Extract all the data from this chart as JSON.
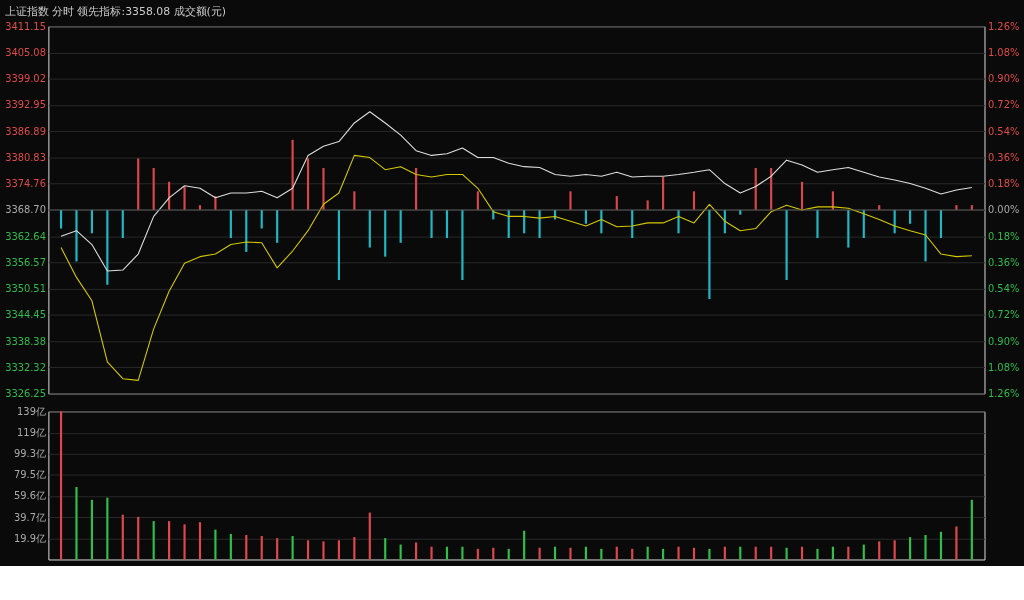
{
  "chart_data": [
    {
      "type": "line",
      "title": "上证指数  分时  领先指标:3358.08  成交额(元)",
      "categories": [
        null,
        null,
        null,
        null,
        null,
        null,
        null,
        null,
        null,
        null,
        null,
        null,
        null,
        null,
        null,
        null,
        null,
        null,
        null,
        null,
        null,
        null,
        null,
        null,
        null,
        null,
        null,
        null,
        null,
        null,
        null,
        null,
        null,
        null,
        null,
        null,
        null,
        null,
        null,
        null,
        null,
        null,
        null,
        null,
        null,
        null,
        null,
        null,
        null,
        null,
        null,
        null,
        null,
        null,
        null,
        null,
        null,
        null,
        null,
        null
      ],
      "ylim": [
        3326.25,
        3411.15
      ],
      "yticks": [
        {
          "value": 3326.25,
          "label": "3326.25"
        },
        {
          "value": 3332.32,
          "label": "3332.32"
        },
        {
          "value": 3338.38,
          "label": "3338.38"
        },
        {
          "value": 3344.45,
          "label": "3344.45"
        },
        {
          "value": 3350.51,
          "label": "3350.51"
        },
        {
          "value": 3356.57,
          "label": "3356.57"
        },
        {
          "value": 3362.64,
          "label": "3362.64"
        },
        {
          "value": 3368.7,
          "label": "3368.70"
        },
        {
          "value": 3374.76,
          "label": "3374.76"
        },
        {
          "value": 3380.83,
          "label": "3380.83"
        },
        {
          "value": 3386.89,
          "label": "3386.89"
        },
        {
          "value": 3392.95,
          "label": "3392.95"
        },
        {
          "value": 3399.02,
          "label": "3399.02"
        },
        {
          "value": 3405.08,
          "label": "3405.08"
        },
        {
          "value": 3411.15,
          "label": "3411.15"
        }
      ],
      "y2lim": [
        -1.26,
        1.26
      ],
      "y2ticks": [
        {
          "value": -1.26,
          "label": "1.26%"
        },
        {
          "value": -1.08,
          "label": "1.08%"
        },
        {
          "value": -0.9,
          "label": "0.90%"
        },
        {
          "value": -0.72,
          "label": "0.72%"
        },
        {
          "value": -0.54,
          "label": "0.54%"
        },
        {
          "value": -0.36,
          "label": "0.36%"
        },
        {
          "value": -0.18,
          "label": "0.18%"
        },
        {
          "value": 0,
          "label": "0.00%"
        },
        {
          "value": 0.18,
          "label": "0.18%"
        },
        {
          "value": 0.36,
          "label": "0.36%"
        },
        {
          "value": 0.54,
          "label": "0.54%"
        },
        {
          "value": 0.72,
          "label": "0.72%"
        },
        {
          "value": 0.9,
          "label": "0.90%"
        },
        {
          "value": 1.08,
          "label": "1.08%"
        },
        {
          "value": 1.26,
          "label": "1.26%"
        }
      ],
      "grid": "y",
      "ref_lines": [
        {
          "axis": "y2",
          "value": 0,
          "color": "#555555"
        }
      ],
      "series": [
        {
          "type": "bar",
          "base": [
            3368.7,
            3368.7,
            3368.7,
            3368.7,
            3368.7,
            3368.7,
            3368.7,
            3368.7,
            3368.7,
            3368.7,
            3368.7,
            3368.7,
            3368.7,
            3368.7,
            3368.7,
            3368.7,
            3368.7,
            3368.7,
            3368.7,
            3368.7,
            3368.7,
            3368.7,
            3368.7,
            3368.7,
            3368.7,
            3368.7,
            3368.7,
            3368.7,
            3368.7,
            3368.7,
            3368.7,
            3368.7,
            3368.7,
            3368.7,
            3368.7,
            3368.7,
            3368.7,
            3368.7,
            3368.7,
            3368.7,
            3368.7,
            3368.7,
            3368.7,
            3368.7,
            3368.7,
            3368.7,
            3368.7,
            3368.7,
            3368.7,
            3368.7,
            3368.7,
            3368.7,
            3368.7,
            3368.7,
            3368.7,
            3368.7,
            3368.7,
            3368.7,
            3368.7,
            3368.7
          ],
          "values": [
            -4.3,
            -11.9,
            -5.4,
            -17.3,
            -6.5,
            11.9,
            9.7,
            6.5,
            5.4,
            1.1,
            3.2,
            -6.5,
            -9.7,
            -4.3,
            -7.6,
            16.2,
            11.9,
            9.7,
            -16.2,
            4.3,
            -8.7,
            -10.8,
            -7.6,
            9.7,
            -6.5,
            -6.5,
            -16.2,
            4.3,
            -2.2,
            -6.5,
            -5.4,
            -6.5,
            -2.2,
            4.3,
            -3.2,
            -5.4,
            3.2,
            -6.5,
            2.2,
            7.6,
            -5.4,
            4.3,
            -20.6,
            -5.4,
            -1.1,
            9.7,
            9.7,
            -16.2,
            6.5,
            -6.5,
            4.3,
            -8.7,
            -6.5,
            1.1,
            -5.4,
            -3.2,
            -11.9,
            -6.5,
            1.1,
            1.1
          ],
          "colors": [
            "#20b8c4",
            "#20b8c4",
            "#20b8c4",
            "#20b8c4",
            "#20b8c4",
            "#d9474a",
            "#d9474a",
            "#d9474a",
            "#d9474a",
            "#d9474a",
            "#d9474a",
            "#20b8c4",
            "#20b8c4",
            "#20b8c4",
            "#20b8c4",
            "#d9474a",
            "#d9474a",
            "#d9474a",
            "#20b8c4",
            "#d9474a",
            "#20b8c4",
            "#20b8c4",
            "#20b8c4",
            "#d9474a",
            "#20b8c4",
            "#20b8c4",
            "#20b8c4",
            "#d9474a",
            "#20b8c4",
            "#20b8c4",
            "#20b8c4",
            "#20b8c4",
            "#20b8c4",
            "#d9474a",
            "#20b8c4",
            "#20b8c4",
            "#d9474a",
            "#20b8c4",
            "#d9474a",
            "#d9474a",
            "#20b8c4",
            "#d9474a",
            "#20b8c4",
            "#20b8c4",
            "#20b8c4",
            "#d9474a",
            "#d9474a",
            "#20b8c4",
            "#d9474a",
            "#20b8c4",
            "#d9474a",
            "#20b8c4",
            "#20b8c4",
            "#d9474a",
            "#20b8c4",
            "#20b8c4",
            "#20b8c4",
            "#20b8c4",
            "#d9474a",
            "#d9474a"
          ]
        },
        {
          "type": "line",
          "color": "#dddddd",
          "values": [
            3362.6,
            3363.9,
            3360.7,
            3354.6,
            3354.8,
            3358.5,
            3367.2,
            3371.5,
            3374.3,
            3373.7,
            3371.5,
            3372.6,
            3372.6,
            3373.0,
            3371.5,
            3373.7,
            3381.3,
            3383.4,
            3384.5,
            3388.8,
            3391.4,
            3388.8,
            3386.0,
            3382.4,
            3381.3,
            3381.7,
            3383.0,
            3380.8,
            3380.8,
            3379.5,
            3378.7,
            3378.5,
            3376.9,
            3376.5,
            3376.9,
            3376.5,
            3377.4,
            3376.3,
            3376.5,
            3376.5,
            3376.9,
            3377.4,
            3378.0,
            3374.8,
            3372.6,
            3374.1,
            3376.5,
            3380.2,
            3379.1,
            3377.4,
            3378.0,
            3378.5,
            3377.4,
            3376.3,
            3375.6,
            3374.8,
            3373.7,
            3372.4,
            3373.3,
            3373.9
          ]
        },
        {
          "type": "line",
          "color": "#d4c800",
          "values": [
            3360.0,
            3353.1,
            3347.7,
            3333.6,
            3329.7,
            3329.3,
            3341.2,
            3349.9,
            3356.4,
            3357.9,
            3358.5,
            3360.7,
            3361.3,
            3361.1,
            3355.3,
            3359.2,
            3363.9,
            3370.0,
            3372.6,
            3381.3,
            3380.8,
            3378.0,
            3378.7,
            3376.9,
            3376.3,
            3376.9,
            3376.9,
            3373.7,
            3368.3,
            3367.2,
            3367.2,
            3366.8,
            3367.2,
            3366.1,
            3365.0,
            3366.5,
            3364.8,
            3365.0,
            3365.7,
            3365.7,
            3367.2,
            3365.7,
            3370.0,
            3366.1,
            3363.9,
            3364.4,
            3368.3,
            3369.8,
            3368.7,
            3369.4,
            3369.4,
            3369.1,
            3367.8,
            3366.5,
            3365.0,
            3363.9,
            3362.9,
            3358.5,
            3357.9,
            3358.1
          ]
        }
      ]
    },
    {
      "type": "bar",
      "categories": [
        null,
        null,
        null,
        null,
        null,
        null,
        null,
        null,
        null,
        null,
        null,
        null,
        null,
        null,
        null,
        null,
        null,
        null,
        null,
        null,
        null,
        null,
        null,
        null,
        null,
        null,
        null,
        null,
        null,
        null,
        null,
        null,
        null,
        null,
        null,
        null,
        null,
        null,
        null,
        null,
        null,
        null,
        null,
        null,
        null,
        null,
        null,
        null,
        null,
        null,
        null,
        null,
        null,
        null,
        null,
        null,
        null,
        null,
        null,
        null
      ],
      "ylim": [
        0,
        139
      ],
      "yticks": [
        {
          "value": 19.9,
          "label": "19.9亿"
        },
        {
          "value": 39.7,
          "label": "39.7亿"
        },
        {
          "value": 59.6,
          "label": "59.6亿"
        },
        {
          "value": 79.5,
          "label": "79.5亿"
        },
        {
          "value": 99.3,
          "label": "99.3亿"
        },
        {
          "value": 119,
          "label": "119亿"
        },
        {
          "value": 139,
          "label": "139亿"
        }
      ],
      "grid": "y",
      "values": [
        139,
        68,
        56,
        58,
        42,
        40,
        36,
        36,
        33,
        35,
        28,
        24,
        23,
        22,
        20,
        22,
        18,
        17,
        18,
        21,
        44,
        20,
        14,
        16,
        12,
        12,
        12,
        10,
        11,
        10,
        27,
        11,
        12,
        11,
        12,
        10,
        12,
        10,
        12,
        10,
        12,
        11,
        10,
        12,
        12,
        12,
        12,
        11,
        12,
        10,
        12,
        12,
        14,
        17,
        18,
        21,
        23,
        26,
        31,
        56
      ],
      "colors": [
        "#e0474c",
        "#2fbf4a",
        "#2fbf4a",
        "#2fbf4a",
        "#e0474c",
        "#e0474c",
        "#2fbf4a",
        "#e0474c",
        "#e0474c",
        "#e0474c",
        "#2fbf4a",
        "#2fbf4a",
        "#e0474c",
        "#e0474c",
        "#e0474c",
        "#2fbf4a",
        "#e0474c",
        "#e0474c",
        "#e0474c",
        "#e0474c",
        "#e0474c",
        "#2fbf4a",
        "#2fbf4a",
        "#e0474c",
        "#e0474c",
        "#2fbf4a",
        "#2fbf4a",
        "#e0474c",
        "#e0474c",
        "#2fbf4a",
        "#2fbf4a",
        "#e0474c",
        "#2fbf4a",
        "#e0474c",
        "#2fbf4a",
        "#2fbf4a",
        "#e0474c",
        "#e0474c",
        "#2fbf4a",
        "#2fbf4a",
        "#e0474c",
        "#e0474c",
        "#2fbf4a",
        "#e0474c",
        "#2fbf4a",
        "#e0474c",
        "#e0474c",
        "#2fbf4a",
        "#e0474c",
        "#2fbf4a",
        "#2fbf4a",
        "#e0474c",
        "#2fbf4a",
        "#e0474c",
        "#e0474c",
        "#2fbf4a",
        "#2fbf4a",
        "#2fbf4a",
        "#e0474c",
        "#2fbf4a"
      ]
    }
  ]
}
